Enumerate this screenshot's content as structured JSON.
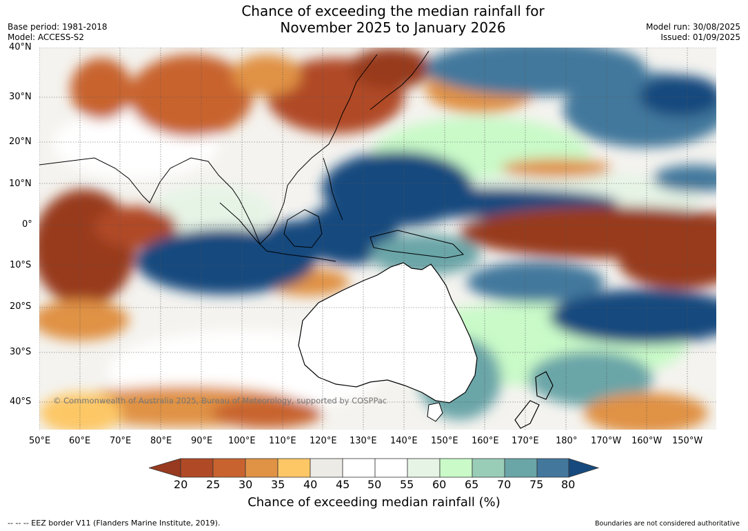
{
  "title": {
    "line1": "Chance of exceeding the median rainfall for",
    "line2": "November 2025 to January 2026"
  },
  "meta_left": {
    "base_period": "Base period: 1981-2018",
    "model": "Model: ACCESS-S2"
  },
  "meta_right": {
    "model_run": "Model run: 30/08/2025",
    "issued": "Issued: 01/09/2025"
  },
  "map": {
    "copyright": "© Commonwealth of Australia 2025, Bureau of Meteorology, supported by COSPPac",
    "lat_labels": [
      "40°N",
      "30°N",
      "20°N",
      "10°N",
      "0°",
      "10°S",
      "20°S",
      "30°S",
      "40°S"
    ],
    "lon_labels": [
      "50°E",
      "60°E",
      "70°E",
      "80°E",
      "90°E",
      "100°E",
      "110°E",
      "120°E",
      "130°E",
      "140°E",
      "150°E",
      "160°E",
      "170°E",
      "180°",
      "170°W",
      "160°W",
      "150°W"
    ],
    "extent": {
      "lon_min": 50,
      "lon_max": 217,
      "lat_min": -46,
      "lat_max": 40
    }
  },
  "colorbar": {
    "label": "Chance of exceeding median rainfall (%)",
    "ticks": [
      "20",
      "25",
      "30",
      "35",
      "40",
      "45",
      "50",
      "55",
      "60",
      "65",
      "70",
      "75",
      "80"
    ],
    "colors": [
      "#983a1f",
      "#b04a26",
      "#c8632f",
      "#e09245",
      "#fdc766",
      "#edebe6",
      "#ffffff",
      "#ffffff",
      "#e6f4e6",
      "#c9fac8",
      "#99cdb8",
      "#6aa5a8",
      "#43789c",
      "#164a7e"
    ],
    "water_color": "#ffffff",
    "land_outline_color": "#000000"
  },
  "footer": {
    "eez": "--  --  -- EEZ border V11 (Flanders Marine Institute, 2019).",
    "disclaimer": "Boundaries are not considered authoritative"
  }
}
